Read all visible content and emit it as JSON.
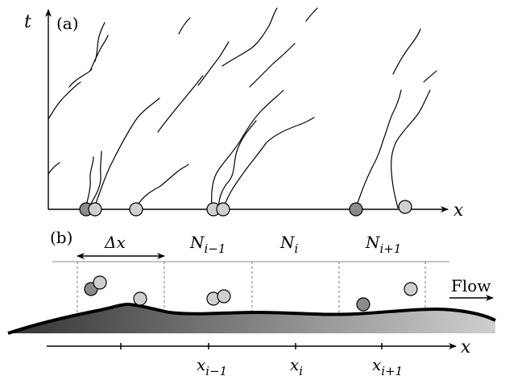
{
  "panel_a": {
    "label": "(a)",
    "axis_t": "t",
    "axis_x": "x"
  },
  "panel_b": {
    "label": "(b)",
    "delta_x": "Δx",
    "N_sym": "N",
    "N_left_sub": "i−1",
    "N_mid_sub": "i",
    "N_right_sub": "i+1",
    "flow_label": "Flow",
    "axis_x": "x",
    "x_sym": "x",
    "x_left_sub": "i−1",
    "x_mid_sub": "i",
    "x_right_sub": "i+1"
  },
  "colors": {
    "dark_particle": "#8c8c8c",
    "light_particle": "#cfcfcf",
    "bed_dark": "#3a3a3a",
    "bed_light": "#c8c8c8"
  }
}
